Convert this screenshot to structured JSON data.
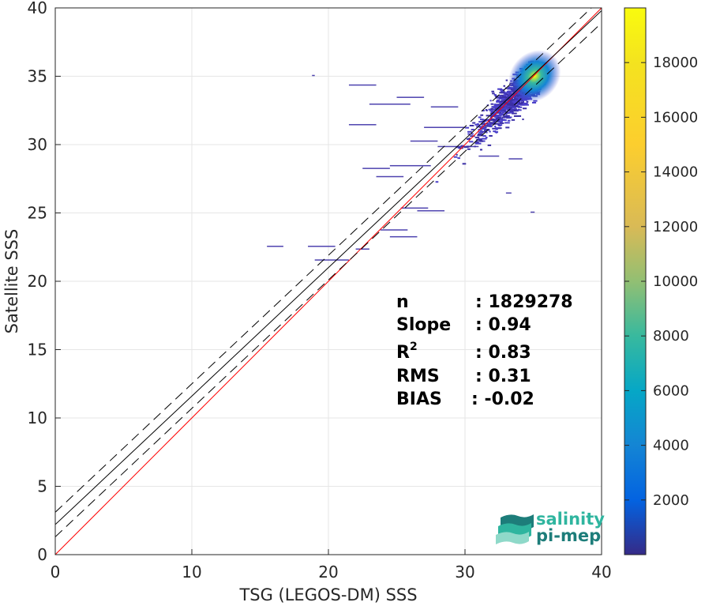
{
  "chart_data": {
    "type": "heatmap",
    "title": "",
    "xlabel": "TSG (LEGOS-DM) SSS",
    "ylabel": "Satellite SSS",
    "xlim": [
      0,
      40
    ],
    "ylim": [
      0,
      40
    ],
    "x_ticks": [
      "0",
      "10",
      "20",
      "30",
      "40"
    ],
    "y_ticks": [
      "0",
      "5",
      "10",
      "15",
      "20",
      "25",
      "30",
      "35",
      "40"
    ],
    "grid": true,
    "colorbar": {
      "range": [
        0,
        20000
      ],
      "ticks": [
        "2000",
        "4000",
        "6000",
        "8000",
        "10000",
        "12000",
        "14000",
        "16000",
        "18000"
      ],
      "colormap": "parula"
    },
    "lines": [
      {
        "name": "1:1",
        "color": "#ff0000",
        "style": "solid",
        "points": [
          [
            0,
            0
          ],
          [
            40,
            40
          ]
        ]
      },
      {
        "name": "fit",
        "color": "#000000",
        "style": "solid",
        "points": [
          [
            0,
            2.2
          ],
          [
            40,
            39.8
          ]
        ]
      },
      {
        "name": "fit+",
        "color": "#000000",
        "style": "dashed",
        "points": [
          [
            0,
            3.1
          ],
          [
            40,
            40.7
          ]
        ]
      },
      {
        "name": "fit-",
        "color": "#000000",
        "style": "dashed",
        "points": [
          [
            0,
            1.3
          ],
          [
            40,
            38.9
          ]
        ]
      }
    ],
    "density_core": {
      "x": 35.1,
      "y": 35.0,
      "peak": 19000
    },
    "stats": [
      {
        "label": "n",
        "value": ": 1829278"
      },
      {
        "label": "Slope",
        "value": ": 0.94"
      },
      {
        "label": "R",
        "sup": "2",
        "value": ": 0.83"
      },
      {
        "label": "RMS",
        "value": ": 0.31"
      },
      {
        "label": "BIAS",
        "value": ": -0.02"
      }
    ]
  },
  "logo": {
    "line1": "salinity",
    "line2": "pi-mep",
    "color1": "#2fb59f",
    "color2": "#1d7d7a"
  }
}
